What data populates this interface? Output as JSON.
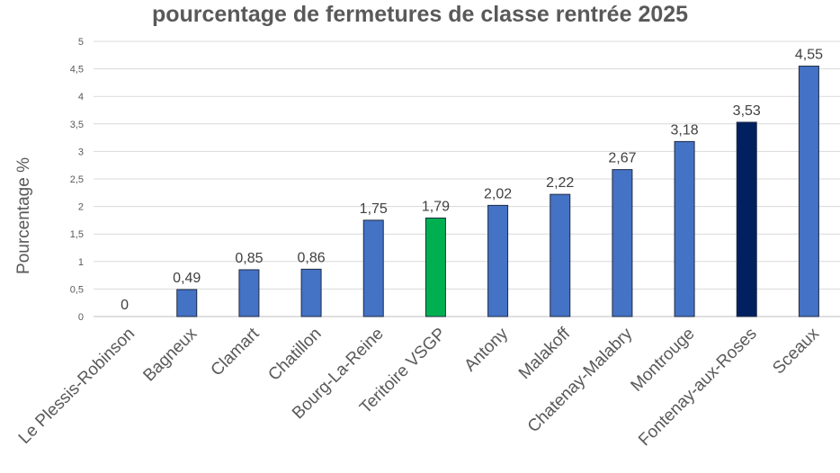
{
  "chart_data": {
    "type": "bar",
    "title": "pourcentage de fermetures de classe rentrée 2025",
    "xlabel": "",
    "ylabel": "Pourcentage %",
    "ylim": [
      0,
      5
    ],
    "yticks": [
      "0",
      "0,5",
      "1",
      "1,5",
      "2",
      "2,5",
      "3",
      "3,5",
      "4",
      "4,5",
      "5"
    ],
    "grid": true,
    "categories": [
      "Le Plessis-Robinson",
      "Bagneux",
      "Clamart",
      "Chatillon",
      "Bourg-La-Reine",
      "Teritoire VSGP",
      "Antony",
      "Malakoff",
      "Chatenay-Malabry",
      "Montrouge",
      "Fontenay-aux-Roses",
      "Sceaux"
    ],
    "values": [
      0,
      0.49,
      0.85,
      0.86,
      1.75,
      1.79,
      2.02,
      2.22,
      2.67,
      3.18,
      3.53,
      4.55
    ],
    "data_labels": [
      "0",
      "0,49",
      "0,85",
      "0,86",
      "1,75",
      "1,79",
      "2,02",
      "2,22",
      "2,67",
      "3,18",
      "3,53",
      "4,55"
    ],
    "colors": [
      "#4472C4",
      "#4472C4",
      "#4472C4",
      "#4472C4",
      "#4472C4",
      "#00B050",
      "#4472C4",
      "#4472C4",
      "#4472C4",
      "#4472C4",
      "#002060",
      "#4472C4"
    ]
  }
}
